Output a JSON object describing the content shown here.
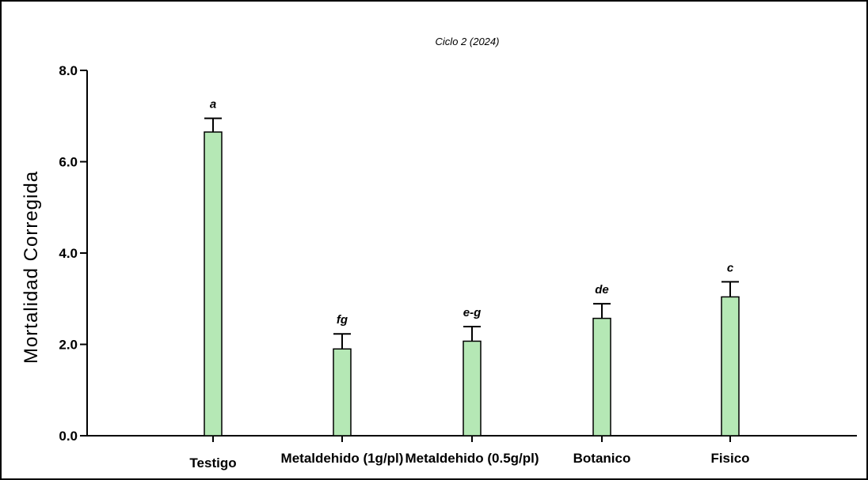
{
  "chart_data": {
    "type": "bar",
    "title": "Ciclo 2 (2024)",
    "xlabel": "",
    "ylabel": "Mortalidad Corregida",
    "ylim": [
      0,
      8
    ],
    "yticks": [
      "0.0",
      "2.0",
      "4.0",
      "6.0",
      "8.0"
    ],
    "ytick_values": [
      0,
      2,
      4,
      6,
      8
    ],
    "categories": [
      "Testigo",
      "Metaldehido (1g/pl)",
      "Metaldehido (0.5g/pl)",
      "Botanico",
      "Fisico"
    ],
    "values": [
      6.65,
      1.9,
      2.07,
      2.57,
      3.04
    ],
    "errors": [
      0.3,
      0.33,
      0.32,
      0.32,
      0.33
    ],
    "significance_letters": [
      "a",
      "fg",
      "e-g",
      "de",
      "c"
    ],
    "grid": false,
    "legend": "none",
    "colors": {
      "bar_fill": "#b5e8b5",
      "bar_stroke": "#000000"
    }
  }
}
